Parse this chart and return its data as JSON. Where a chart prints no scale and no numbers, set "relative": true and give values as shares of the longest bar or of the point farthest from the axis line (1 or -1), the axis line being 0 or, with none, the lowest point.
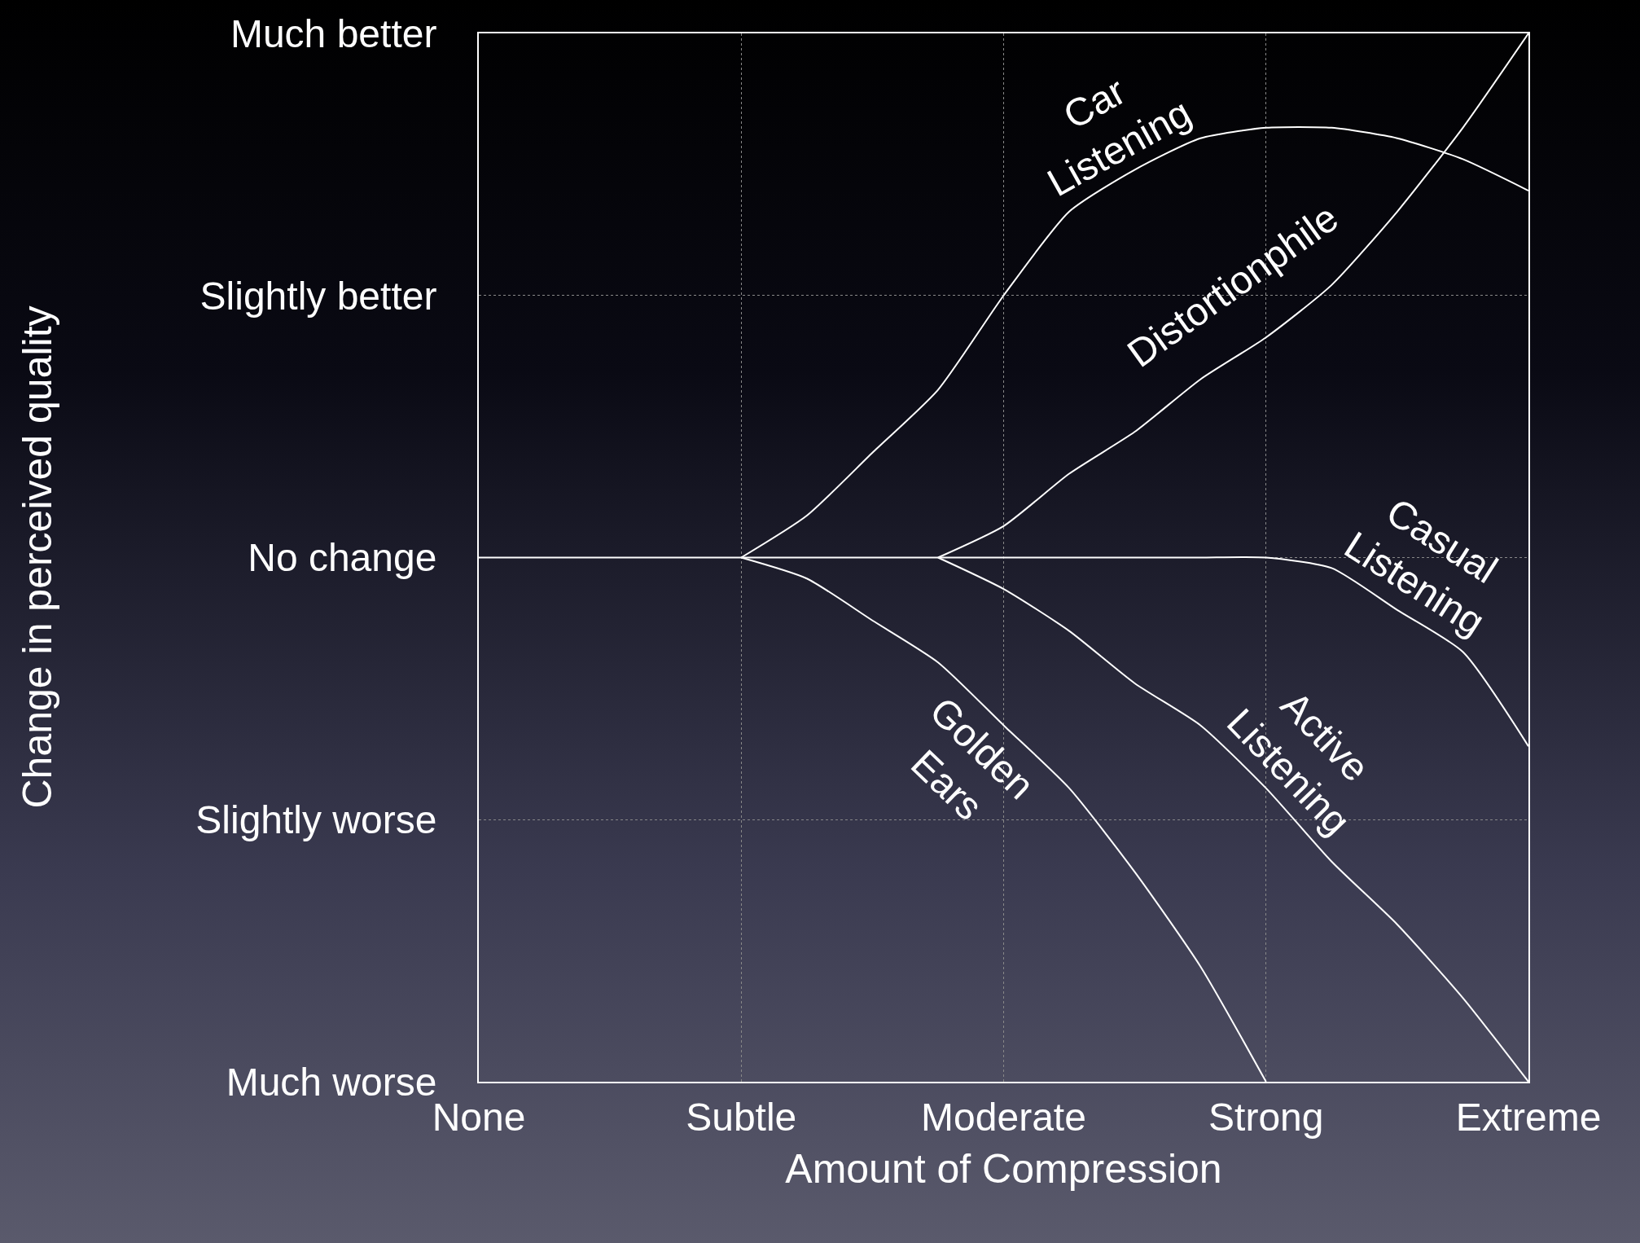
{
  "chart_data": {
    "type": "line",
    "xlabel": "Amount of Compression",
    "relative": true,
    "categories": [
      "None",
      null,
      null,
      null,
      "Subtle",
      null,
      null,
      null,
      "Moderate",
      null,
      null,
      null,
      "Strong",
      null,
      null,
      null,
      "Extreme"
    ],
    "annotations": [
      "Change in perceived quality",
      "Much worse",
      "Slightly worse",
      "No change",
      "Slightly better",
      "Much better"
    ],
    "grid": true,
    "legend": false,
    "marker": "none",
    "line_style": "solid",
    "series": [
      {
        "name": "Car Listening",
        "color": "#ffffff",
        "values": [
          null,
          null,
          null,
          null,
          0.5,
          0.54,
          0.6,
          0.66,
          0.75,
          0.83,
          0.87,
          0.9,
          0.91,
          0.91,
          0.9,
          0.88,
          0.85
        ]
      },
      {
        "name": "Distortionphile",
        "color": "#ffffff",
        "values": [
          null,
          null,
          null,
          null,
          null,
          null,
          null,
          0.5,
          0.53,
          0.58,
          0.62,
          0.67,
          0.71,
          0.76,
          0.83,
          0.91,
          1.0
        ]
      },
      {
        "name": "Casual Listening",
        "color": "#ffffff",
        "values": [
          0.5,
          0.5,
          0.5,
          0.5,
          0.5,
          0.5,
          0.5,
          0.5,
          0.5,
          0.5,
          0.5,
          0.5,
          0.5,
          0.49,
          0.45,
          0.41,
          0.32
        ]
      },
      {
        "name": "Golden Ears",
        "color": "#ffffff",
        "values": [
          null,
          null,
          null,
          null,
          0.5,
          0.48,
          0.44,
          0.4,
          0.34,
          0.28,
          0.2,
          0.11,
          0,
          null,
          null,
          null,
          null
        ]
      },
      {
        "name": "Active Listening",
        "color": "#ffffff",
        "values": [
          null,
          null,
          null,
          null,
          null,
          null,
          null,
          0.5,
          0.47,
          0.43,
          0.38,
          0.34,
          0.28,
          0.21,
          0.15,
          0.08,
          0
        ]
      }
    ]
  }
}
